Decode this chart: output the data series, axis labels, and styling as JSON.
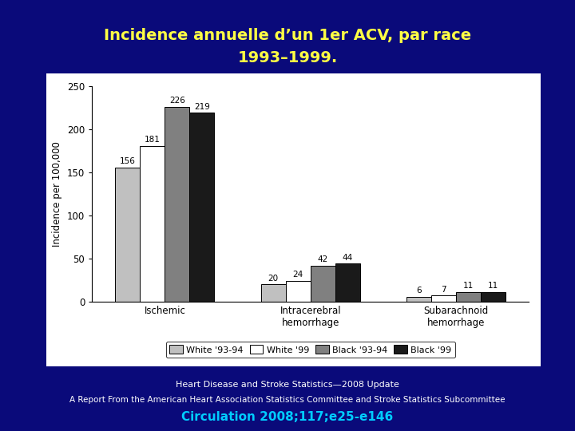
{
  "title_line1": "Incidence annuelle d’un 1er ACV, par race",
  "title_line2": "1993–1999.",
  "title_color": "#FFFF44",
  "bg_color": "#0A0A7A",
  "chart_bg": "#FFFFFF",
  "ylabel": "Incidence per 100,000",
  "categories": [
    "Ischemic",
    "Intracerebral\nhemorrhage",
    "Subarachnoid\nhemorrhage"
  ],
  "series": {
    "White 93-94": {
      "values": [
        156,
        20,
        6
      ],
      "color": "#C0C0C0"
    },
    "White 99": {
      "values": [
        181,
        24,
        7
      ],
      "color": "#FFFFFF"
    },
    "Black 93-94": {
      "values": [
        226,
        42,
        11
      ],
      "color": "#808080"
    },
    "Black 99": {
      "values": [
        219,
        44,
        11
      ],
      "color": "#1A1A1A"
    }
  },
  "legend_labels": [
    "White '93-94",
    "White '99",
    "Black '93-94",
    "Black '99"
  ],
  "legend_colors": [
    "#C0C0C0",
    "#FFFFFF",
    "#808080",
    "#1A1A1A"
  ],
  "ylim": [
    0,
    250
  ],
  "yticks": [
    0,
    50,
    100,
    150,
    200,
    250
  ],
  "footer_line1": "Heart Disease and Stroke Statistics—2008 Update",
  "footer_line2": "A Report From the American Heart Association Statistics Committee and Stroke Statistics Subcommittee",
  "footer_line3": "Circulation 2008;117;e25-e146",
  "footer_color1": "#FFFFFF",
  "footer_color3": "#00CCFF"
}
